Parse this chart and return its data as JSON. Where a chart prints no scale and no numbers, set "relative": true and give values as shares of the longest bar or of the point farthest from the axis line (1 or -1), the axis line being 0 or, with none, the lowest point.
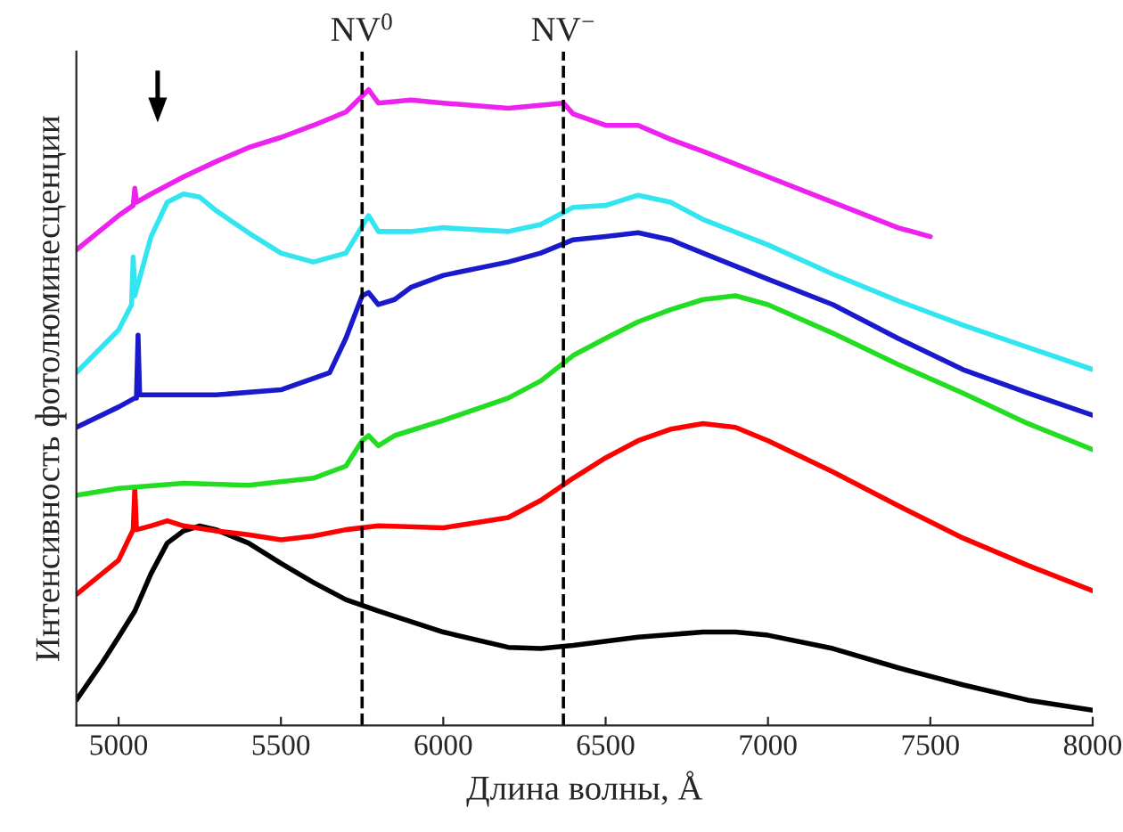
{
  "chart_data": {
    "type": "line",
    "relative": true,
    "xlabel": "Длина волны, Å",
    "ylabel": "Интенсивность фотолюминесценции",
    "xlim": [
      4870,
      8000
    ],
    "xticks": [
      5000,
      5500,
      6000,
      6500,
      7000,
      7500,
      8000
    ],
    "grid": false,
    "legend": false,
    "marker": "none",
    "line_style": "solid",
    "tick_labels": "x",
    "ref_lines": [
      {
        "axis": "x",
        "value": 5750,
        "label": "NV$^{0}$",
        "line_style": "dashed",
        "color": "#000000"
      },
      {
        "axis": "x",
        "value": 6370,
        "label": "NV$^{−}$",
        "line_style": "dashed",
        "color": "#000000"
      }
    ],
    "series": [
      {
        "color": "#000000",
        "x": [
          4870,
          4950,
          5000,
          5050,
          5100,
          5150,
          5200,
          5250,
          5300,
          5400,
          5500,
          5600,
          5700,
          5800,
          6000,
          6200,
          6300,
          6400,
          6600,
          6800,
          6900,
          7000,
          7200,
          7400,
          7600,
          7800,
          8000
        ],
        "values": [
          0.04,
          0.099,
          0.139,
          0.18,
          0.239,
          0.287,
          0.306,
          0.314,
          0.308,
          0.287,
          0.255,
          0.225,
          0.198,
          0.18,
          0.147,
          0.123,
          0.121,
          0.126,
          0.139,
          0.147,
          0.147,
          0.142,
          0.121,
          0.091,
          0.064,
          0.04,
          0.024
        ]
      },
      {
        "color": "#ff0000",
        "x": [
          4870,
          5000,
          5045,
          5050,
          5055,
          5100,
          5150,
          5200,
          5300,
          5400,
          5500,
          5600,
          5700,
          5800,
          6000,
          6200,
          6300,
          6400,
          6500,
          6600,
          6700,
          6800,
          6900,
          7000,
          7200,
          7400,
          7600,
          7800,
          8000
        ],
        "values": [
          0.206,
          0.26,
          0.308,
          0.373,
          0.308,
          0.314,
          0.322,
          0.314,
          0.306,
          0.3,
          0.292,
          0.298,
          0.308,
          0.314,
          0.311,
          0.327,
          0.354,
          0.389,
          0.421,
          0.448,
          0.466,
          0.475,
          0.469,
          0.448,
          0.399,
          0.346,
          0.295,
          0.252,
          0.212
        ]
      },
      {
        "color": "#22dd22",
        "x": [
          4870,
          5000,
          5200,
          5400,
          5600,
          5700,
          5750,
          5770,
          5800,
          5850,
          6000,
          6200,
          6300,
          6400,
          6500,
          6600,
          6700,
          6800,
          6900,
          7000,
          7200,
          7400,
          7600,
          7800,
          8000
        ],
        "values": [
          0.362,
          0.373,
          0.381,
          0.378,
          0.389,
          0.408,
          0.448,
          0.456,
          0.44,
          0.456,
          0.48,
          0.515,
          0.542,
          0.582,
          0.609,
          0.635,
          0.654,
          0.67,
          0.676,
          0.662,
          0.617,
          0.568,
          0.523,
          0.475,
          0.434
        ]
      },
      {
        "color": "#1a1acc",
        "x": [
          4870,
          5000,
          5050,
          5055,
          5060,
          5065,
          5100,
          5300,
          5500,
          5650,
          5700,
          5750,
          5770,
          5800,
          5850,
          5900,
          6000,
          6200,
          6300,
          6400,
          6500,
          6600,
          6700,
          6800,
          7000,
          7200,
          7400,
          7600,
          7800,
          8000
        ],
        "values": [
          0.469,
          0.501,
          0.515,
          0.515,
          0.614,
          0.52,
          0.52,
          0.52,
          0.528,
          0.555,
          0.609,
          0.676,
          0.681,
          0.662,
          0.67,
          0.689,
          0.708,
          0.729,
          0.743,
          0.764,
          0.769,
          0.775,
          0.764,
          0.743,
          0.702,
          0.662,
          0.609,
          0.56,
          0.523,
          0.488
        ]
      },
      {
        "color": "#33e5f0",
        "x": [
          4870,
          5000,
          5040,
          5045,
          5050,
          5100,
          5150,
          5200,
          5250,
          5300,
          5400,
          5500,
          5600,
          5700,
          5770,
          5800,
          5900,
          6000,
          6200,
          6300,
          6400,
          6500,
          6600,
          6700,
          6800,
          7000,
          7200,
          7400,
          7600,
          7800,
          8000
        ],
        "values": [
          0.555,
          0.622,
          0.662,
          0.737,
          0.676,
          0.769,
          0.823,
          0.836,
          0.831,
          0.81,
          0.775,
          0.743,
          0.729,
          0.743,
          0.802,
          0.777,
          0.777,
          0.783,
          0.777,
          0.788,
          0.815,
          0.818,
          0.834,
          0.823,
          0.796,
          0.756,
          0.71,
          0.668,
          0.63,
          0.595,
          0.56
        ]
      },
      {
        "color": "#ee22ee",
        "x": [
          4870,
          5000,
          5045,
          5050,
          5055,
          5100,
          5200,
          5300,
          5400,
          5500,
          5600,
          5700,
          5770,
          5800,
          5900,
          6000,
          6200,
          6370,
          6400,
          6500,
          6600,
          6700,
          6800,
          7000,
          7200,
          7400,
          7500
        ],
        "values": [
          0.748,
          0.802,
          0.818,
          0.845,
          0.823,
          0.836,
          0.863,
          0.887,
          0.909,
          0.925,
          0.944,
          0.965,
          1.0,
          0.979,
          0.984,
          0.979,
          0.971,
          0.979,
          0.962,
          0.944,
          0.944,
          0.922,
          0.903,
          0.863,
          0.823,
          0.783,
          0.769
        ]
      }
    ]
  }
}
